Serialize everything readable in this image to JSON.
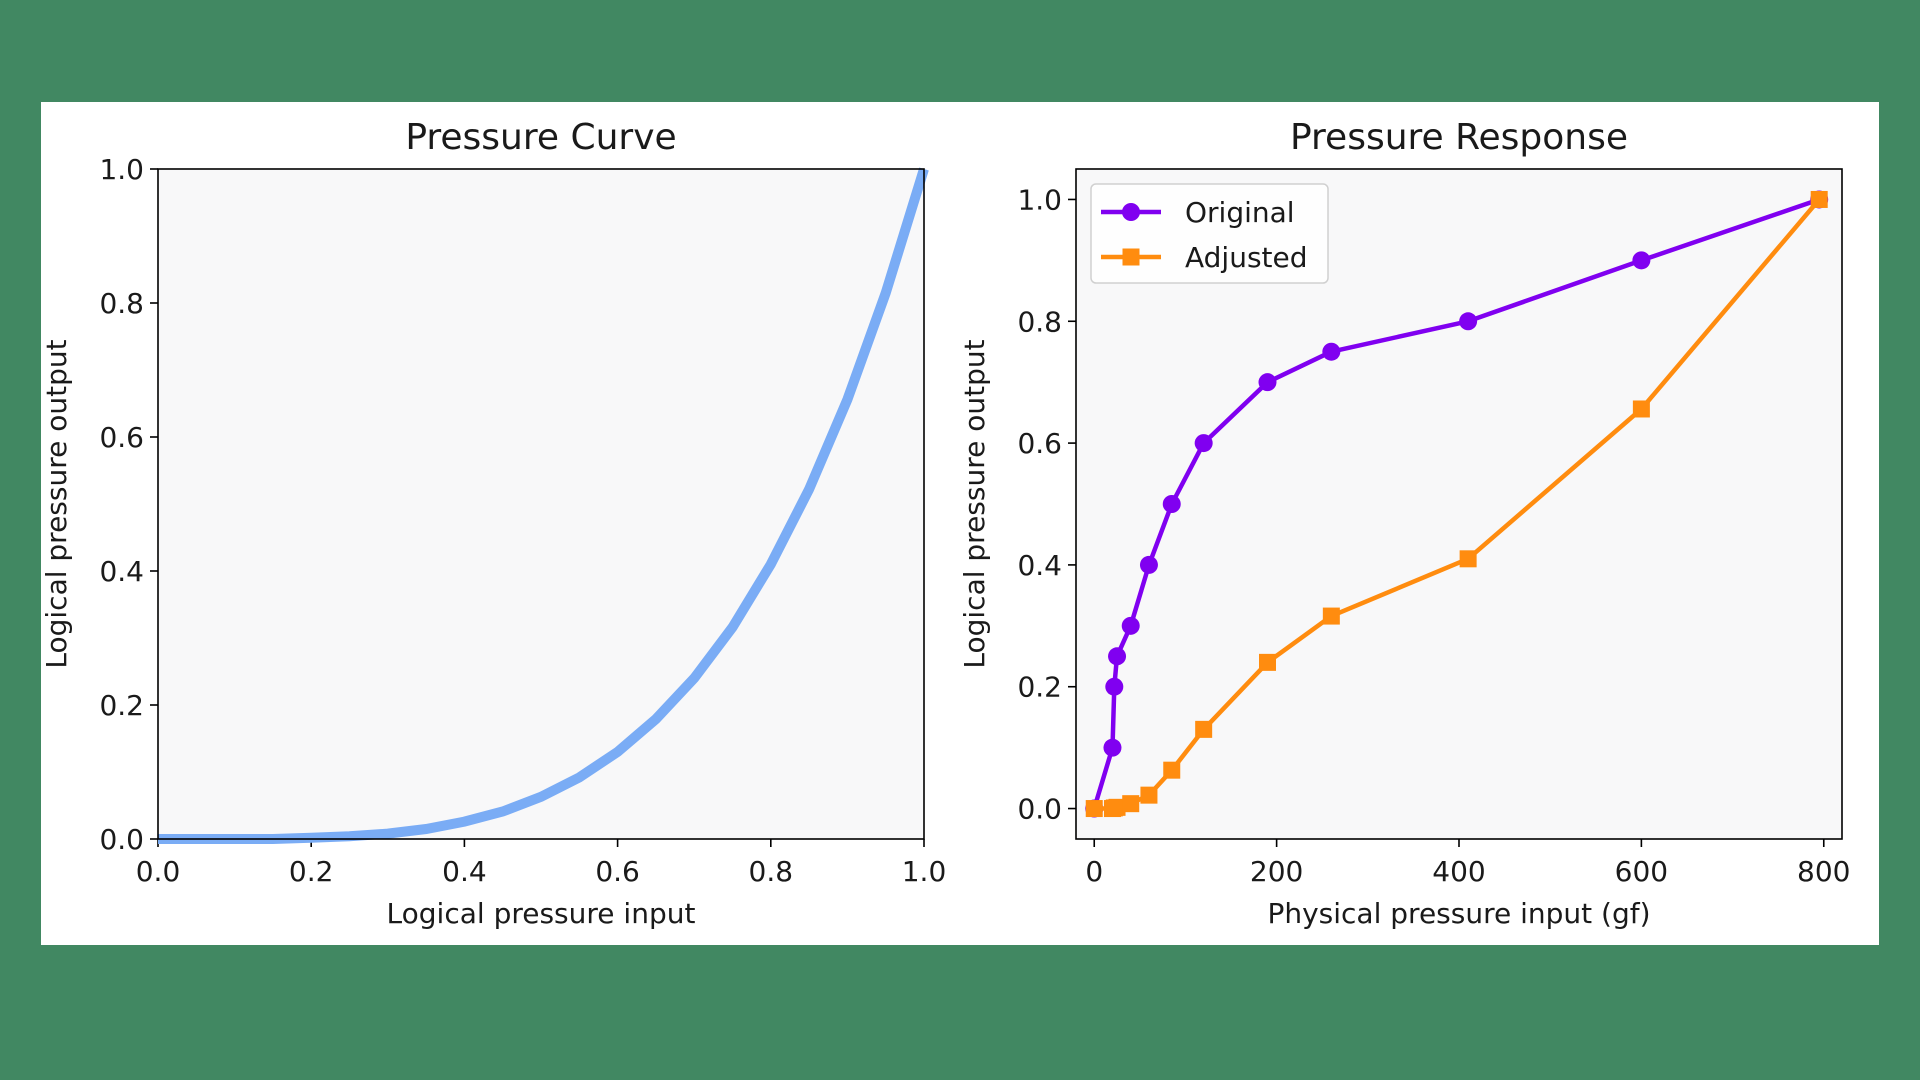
{
  "colors": {
    "background": "#418862",
    "figure": "#ffffff",
    "plot_area": "#f8f8f9",
    "curve": "#7aacf5",
    "original": "#8000f0",
    "adjusted": "#ff8c0f"
  },
  "chart_data": [
    {
      "type": "line",
      "title": "Pressure Curve",
      "xlabel": "Logical pressure input",
      "ylabel": "Logical pressure output",
      "xlim": [
        0,
        1
      ],
      "ylim": [
        0,
        1
      ],
      "x_ticks": [
        "0.0",
        "0.2",
        "0.4",
        "0.6",
        "0.8",
        "1.0"
      ],
      "y_ticks": [
        "0.0",
        "0.2",
        "0.4",
        "0.6",
        "0.8",
        "1.0"
      ],
      "grid": false,
      "series": [
        {
          "x": [
            0.0,
            0.05,
            0.1,
            0.15,
            0.2,
            0.25,
            0.3,
            0.35,
            0.4,
            0.45,
            0.5,
            0.55,
            0.6,
            0.65,
            0.7,
            0.75,
            0.8,
            0.85,
            0.9,
            0.95,
            1.0
          ],
          "y": [
            0.0,
            0.0,
            0.0,
            0.0,
            0.002,
            0.004,
            0.008,
            0.015,
            0.026,
            0.041,
            0.063,
            0.092,
            0.13,
            0.179,
            0.24,
            0.316,
            0.41,
            0.522,
            0.656,
            0.815,
            1.0
          ]
        }
      ]
    },
    {
      "type": "line",
      "title": "Pressure Response",
      "xlabel": "Physical pressure input (gf)",
      "ylabel": "Logical pressure output",
      "xlim": [
        -20,
        820
      ],
      "ylim": [
        -0.05,
        1.05
      ],
      "x_ticks": [
        "0",
        "200",
        "400",
        "600",
        "800"
      ],
      "y_ticks": [
        "0.0",
        "0.2",
        "0.4",
        "0.6",
        "0.8",
        "1.0"
      ],
      "grid": false,
      "legend_position": "top-left",
      "series": [
        {
          "name": "Original",
          "marker": "circle",
          "x": [
            0,
            20,
            22,
            25,
            40,
            60,
            85,
            120,
            190,
            260,
            410,
            600,
            795
          ],
          "y": [
            0.0,
            0.1,
            0.2,
            0.25,
            0.3,
            0.4,
            0.5,
            0.6,
            0.7,
            0.75,
            0.8,
            0.9,
            1.0
          ]
        },
        {
          "name": "Adjusted",
          "marker": "square",
          "x": [
            0,
            20,
            22,
            25,
            40,
            60,
            85,
            120,
            190,
            260,
            410,
            600,
            795
          ],
          "y": [
            0.0,
            0.0,
            0.001,
            0.002,
            0.008,
            0.022,
            0.063,
            0.13,
            0.24,
            0.316,
            0.41,
            0.656,
            1.0
          ]
        }
      ]
    }
  ]
}
